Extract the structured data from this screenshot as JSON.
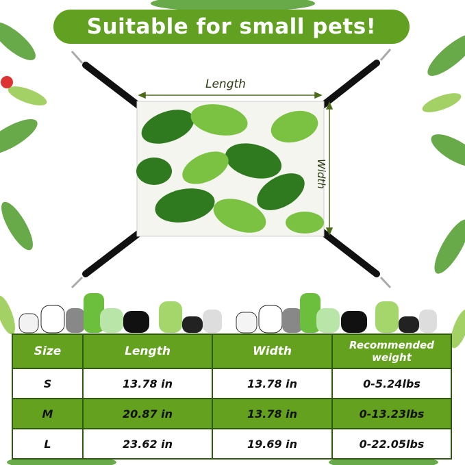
{
  "title": "Suitable for small pets!",
  "dimensions": {
    "length_label": "Length",
    "width_label": "Width"
  },
  "colors": {
    "accent": "#62a021",
    "table_green": "#64a11e",
    "border": "#2e5a10"
  },
  "table": {
    "headers": [
      "Size",
      "Length",
      "Width",
      "Recommended weight"
    ],
    "rows": [
      [
        "S",
        "13.78 in",
        "13.78 in",
        "0-5.24lbs"
      ],
      [
        "M",
        "20.87 in",
        "13.78 in",
        "0-13.23lbs"
      ],
      [
        "L",
        "23.62 in",
        "19.69 in",
        "0-22.05lbs"
      ]
    ]
  }
}
